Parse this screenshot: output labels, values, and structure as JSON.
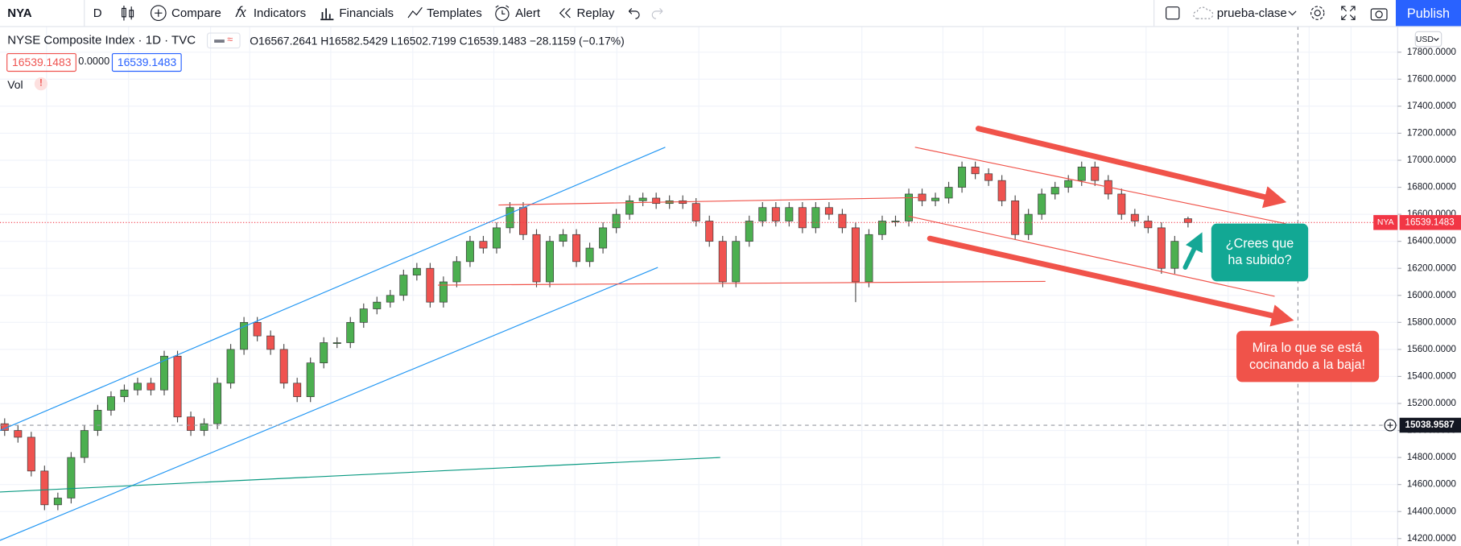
{
  "toolbar": {
    "symbol": "NYA",
    "interval": "D",
    "buttons": [
      "Compare",
      "Indicators",
      "Financials",
      "Templates",
      "Alert",
      "Replay"
    ],
    "layout_name": "prueba-clase",
    "publish": "Publish"
  },
  "legend": {
    "title": "NYSE Composite Index · 1D · TVC",
    "ohlc": [
      "O16567.2641",
      "H16582.5429",
      "L16502.7199",
      "C16539.1483"
    ],
    "change": "−28.1159 (−0.17%)",
    "boxes": [
      "16539.1483",
      "0.0000",
      "16539.1483"
    ],
    "volume": "Vol",
    "currency": "USD"
  },
  "annotations": {
    "question": [
      "¿Crees que",
      "ha subido?"
    ],
    "warning": [
      "Mira lo que se está",
      "cocinando a la baja!"
    ]
  },
  "chart_data": {
    "type": "candlestick",
    "up_color": "#4caf50",
    "down_color": "#ef5350",
    "grid": true,
    "ylim": [
      14145,
      17993
    ],
    "yticks": [
      {
        "value": 14200,
        "label": "14200.0000"
      },
      {
        "value": 14400,
        "label": "14400.0000"
      },
      {
        "value": 14600,
        "label": "14600.0000"
      },
      {
        "value": 14800,
        "label": "14800.0000"
      },
      {
        "value": 15000,
        "label": "15000.0000"
      },
      {
        "value": 15200,
        "label": "15200.0000"
      },
      {
        "value": 15400,
        "label": "15400.0000"
      },
      {
        "value": 15600,
        "label": "15600.0000"
      },
      {
        "value": 15800,
        "label": "15800.0000"
      },
      {
        "value": 16000,
        "label": "16000.0000"
      },
      {
        "value": 16200,
        "label": "16200.0000"
      },
      {
        "value": 16400,
        "label": "16400.0000"
      },
      {
        "value": 16600,
        "label": "16600.0000"
      },
      {
        "value": 16800,
        "label": "16800.0000"
      },
      {
        "value": 17000,
        "label": "17000.0000"
      },
      {
        "value": 17200,
        "label": "17200.0000"
      },
      {
        "value": 17400,
        "label": "17400.0000"
      },
      {
        "value": 17600,
        "label": "17600.0000"
      },
      {
        "value": 17800,
        "label": "17800.0000"
      }
    ],
    "last_price": {
      "symbol": "NYA",
      "value": 16539.1483
    },
    "crosshair_price": 15038.9587,
    "open": [
      15050,
      15000,
      14950,
      14700,
      14450,
      14500,
      14800,
      15000,
      15150,
      15250,
      15300,
      15350,
      15300,
      15550,
      15100,
      15000,
      15050,
      15350,
      15600,
      15800,
      15700,
      15600,
      15350,
      15250,
      15500,
      15650,
      15650,
      15800,
      15900,
      15950,
      16000,
      16150,
      16200,
      15950,
      16100,
      16250,
      16400,
      16350,
      16500,
      16650,
      16450,
      16100,
      16400,
      16450,
      16250,
      16350,
      16500,
      16600,
      16700,
      16720,
      16680,
      16700,
      16680,
      16550,
      16400,
      16100,
      16400,
      16550,
      16650,
      16550,
      16650,
      16500,
      16650,
      16600,
      16500,
      16100,
      16450,
      16550,
      16550,
      16750,
      16700,
      16720,
      16800,
      16950,
      16900,
      16850,
      16700,
      16450,
      16600,
      16750,
      16800,
      16850,
      16950,
      16850,
      16750,
      16600,
      16550,
      16500,
      16200,
      16567.2641
    ],
    "high": [
      15090,
      15040,
      14990,
      14740,
      14540,
      14840,
      15040,
      15190,
      15290,
      15340,
      15390,
      15390,
      15590,
      15590,
      15140,
      15090,
      15390,
      15640,
      15840,
      15840,
      15740,
      15640,
      15390,
      15540,
      15690,
      15690,
      15840,
      15940,
      15990,
      16040,
      16190,
      16240,
      16240,
      16140,
      16290,
      16440,
      16440,
      16540,
      16690,
      16690,
      16490,
      16440,
      16490,
      16490,
      16390,
      16540,
      16640,
      16740,
      16760,
      16760,
      16740,
      16740,
      16720,
      16590,
      16440,
      16440,
      16590,
      16690,
      16690,
      16690,
      16690,
      16690,
      16690,
      16640,
      16540,
      16490,
      16590,
      16590,
      16790,
      16790,
      16760,
      16840,
      16990,
      16990,
      16940,
      16890,
      16740,
      16640,
      16790,
      16840,
      16890,
      16990,
      16990,
      16890,
      16790,
      16640,
      16590,
      16540,
      16440,
      16582.5429
    ],
    "low": [
      14960,
      14910,
      14660,
      14410,
      14410,
      14460,
      14760,
      14960,
      15110,
      15210,
      15260,
      15260,
      15260,
      15060,
      14960,
      14960,
      15010,
      15310,
      15560,
      15660,
      15560,
      15310,
      15210,
      15210,
      15460,
      15610,
      15610,
      15760,
      15860,
      15910,
      15960,
      16110,
      15910,
      15910,
      16060,
      16210,
      16310,
      16310,
      16460,
      16410,
      16060,
      16060,
      16360,
      16210,
      16210,
      16310,
      16460,
      16560,
      16660,
      16640,
      16640,
      16640,
      16510,
      16360,
      16060,
      16060,
      16360,
      16510,
      16510,
      16510,
      16460,
      16460,
      16560,
      16460,
      15950,
      16060,
      16410,
      16510,
      16510,
      16660,
      16660,
      16680,
      16760,
      16860,
      16810,
      16660,
      16410,
      16410,
      16560,
      16710,
      16760,
      16810,
      16810,
      16710,
      16560,
      16510,
      16460,
      16160,
      16160,
      16502.7199
    ],
    "close": [
      15000,
      14950,
      14700,
      14450,
      14500,
      14800,
      15000,
      15150,
      15250,
      15300,
      15350,
      15300,
      15550,
      15100,
      15000,
      15050,
      15350,
      15600,
      15800,
      15700,
      15600,
      15350,
      15250,
      15500,
      15650,
      15650,
      15800,
      15900,
      15950,
      16000,
      16150,
      16200,
      15950,
      16100,
      16250,
      16400,
      16350,
      16500,
      16650,
      16450,
      16100,
      16400,
      16450,
      16250,
      16350,
      16500,
      16600,
      16700,
      16720,
      16680,
      16700,
      16680,
      16550,
      16400,
      16100,
      16400,
      16550,
      16650,
      16550,
      16650,
      16500,
      16650,
      16600,
      16500,
      16100,
      16450,
      16550,
      16550,
      16750,
      16700,
      16720,
      16800,
      16950,
      16900,
      16850,
      16700,
      16450,
      16600,
      16750,
      16800,
      16850,
      16950,
      16850,
      16750,
      16600,
      16550,
      16500,
      16200,
      16400,
      16539.1483
    ]
  }
}
